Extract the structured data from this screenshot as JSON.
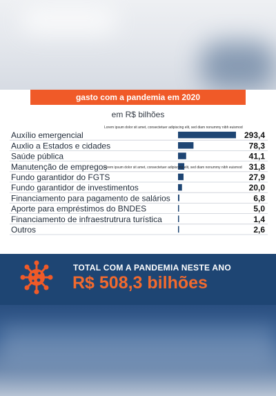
{
  "title": "gasto com a pandemia em 2020",
  "subtitle": "em R$ bilhões",
  "lorem_text_1": "Lorem ipsum dolor sit amet, consectetuer adipiscing elit, sed diam nonummy nibh euismod",
  "lorem_text_2": "Lorem ipsum dolor sit amet, consectetuer adipiscing elit, sed diam nonummy nibh euismod",
  "chart_data": {
    "type": "bar",
    "orientation": "horizontal",
    "categories": [
      "Auxílio emergencial",
      "Auxlio a Estados e cidades",
      "Saúde pública",
      "Manutenção de empregos",
      "Fundo garantidor do FGTS",
      "Fundo garantidor de investimentos",
      "Financiamento para pagamento de salários",
      "Aporte para empréstimos do BNDES",
      "Financiamento de infraestrutrura turística",
      "Outros"
    ],
    "values": [
      293.4,
      78.3,
      41.1,
      31.8,
      27.9,
      20.0,
      6.8,
      5.0,
      1.4,
      2.6
    ],
    "value_labels": [
      "293,4",
      "78,3",
      "41,1",
      "31,8",
      "27,9",
      "20,0",
      "6,8",
      "5,0",
      "1,4",
      "2,6"
    ],
    "xlim": [
      0,
      293.4
    ],
    "bar_color": "#1e4573"
  },
  "total": {
    "label": "TOTAL COM A PANDEMIA NESTE ANO",
    "value": "R$ 508,3 bilhões"
  },
  "colors": {
    "accent_orange": "#f05a28",
    "navy": "#1e4573"
  },
  "icons": {
    "banner": "coronavirus-icon"
  }
}
